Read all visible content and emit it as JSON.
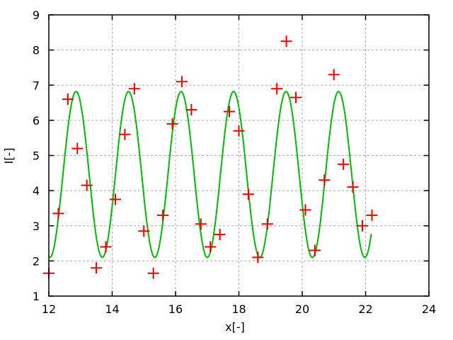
{
  "figure": {
    "background": "#ffffff",
    "border_color": "#000000",
    "grid_color": "#a6a6a6",
    "text_color": "#000000"
  },
  "chart_data": {
    "type": "scatter",
    "title": "",
    "xlabel": "x[-]",
    "ylabel": "I[-]",
    "xlim": [
      12,
      24
    ],
    "ylim": [
      1,
      9
    ],
    "xticks": [
      12,
      14,
      16,
      18,
      20,
      22,
      24
    ],
    "yticks": [
      1,
      2,
      3,
      4,
      5,
      6,
      7,
      8,
      9
    ],
    "grid": true,
    "legend": "none",
    "series": [
      {
        "name": "measured-points",
        "type": "scatter",
        "marker": "plus",
        "color": "#ee0000",
        "marker_half_size": 8,
        "points": [
          [
            12.0,
            1.65
          ],
          [
            12.3,
            3.35
          ],
          [
            12.6,
            6.6
          ],
          [
            12.9,
            5.2
          ],
          [
            13.2,
            4.15
          ],
          [
            13.5,
            1.8
          ],
          [
            13.8,
            2.4
          ],
          [
            14.1,
            3.75
          ],
          [
            14.4,
            5.6
          ],
          [
            14.7,
            6.9
          ],
          [
            15.0,
            2.85
          ],
          [
            15.3,
            1.65
          ],
          [
            15.6,
            3.3
          ],
          [
            15.9,
            5.9
          ],
          [
            16.2,
            7.1
          ],
          [
            16.5,
            6.3
          ],
          [
            16.8,
            3.05
          ],
          [
            17.1,
            2.4
          ],
          [
            17.4,
            2.75
          ],
          [
            17.7,
            6.25
          ],
          [
            18.0,
            5.7
          ],
          [
            18.3,
            3.9
          ],
          [
            18.6,
            2.1
          ],
          [
            18.9,
            3.05
          ],
          [
            19.2,
            6.9
          ],
          [
            19.5,
            8.25
          ],
          [
            19.8,
            6.65
          ],
          [
            20.1,
            3.45
          ],
          [
            20.4,
            2.3
          ],
          [
            20.7,
            4.3
          ],
          [
            21.0,
            7.3
          ],
          [
            21.3,
            4.75
          ],
          [
            21.6,
            4.1
          ],
          [
            21.9,
            3.0
          ],
          [
            22.2,
            3.3
          ]
        ]
      },
      {
        "name": "sine-fit-curve",
        "type": "line",
        "color": "#00bb00",
        "line_width": 2,
        "function": "offset + amplitude * cos(2*pi*(x - peak_x) / period)",
        "params": {
          "offset": 4.46,
          "amplitude": 2.36,
          "period": 1.6575,
          "peak_x": 12.86
        },
        "x_range": [
          12.0,
          22.19
        ]
      }
    ]
  }
}
